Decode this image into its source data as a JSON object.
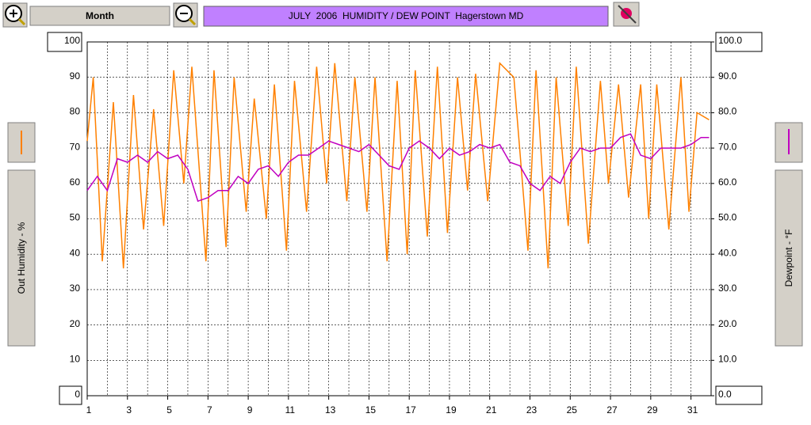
{
  "ui": {
    "period_button": "Month"
  },
  "chart_data": {
    "type": "line",
    "title": "JULY  2006  HUMIDITY / DEW POINT  Hagerstown MD",
    "ylabel": "Out Humidity - %",
    "y2label": "Dewpoint - °F",
    "xlim": [
      1,
      32
    ],
    "xticks": [
      1,
      3,
      5,
      7,
      9,
      11,
      13,
      15,
      17,
      19,
      21,
      23,
      25,
      27,
      29,
      31
    ],
    "xgrid": [
      2,
      3,
      4,
      5,
      6,
      7,
      8,
      9,
      10,
      11,
      12,
      13,
      14,
      15,
      16,
      17,
      18,
      19,
      20,
      21,
      22,
      23,
      24,
      25,
      26,
      27,
      28,
      29,
      30,
      31
    ],
    "ylim": [
      0,
      100
    ],
    "yticks": [
      0,
      10,
      20,
      30,
      40,
      50,
      60,
      70,
      80,
      90,
      100
    ],
    "y2lim": [
      0,
      100
    ],
    "y2ticks": [
      {
        "value": 0,
        "label": "0.0"
      },
      {
        "value": 10,
        "label": "10.0"
      },
      {
        "value": 20,
        "label": "20.0"
      },
      {
        "value": 30,
        "label": "30.0"
      },
      {
        "value": 40,
        "label": "40.0"
      },
      {
        "value": 50,
        "label": "50.0"
      },
      {
        "value": 60,
        "label": "60.0"
      },
      {
        "value": 70,
        "label": "70.0"
      },
      {
        "value": 80,
        "label": "80.0"
      },
      {
        "value": 90,
        "label": "90.0"
      },
      {
        "value": 100,
        "label": "100.0"
      }
    ],
    "grid": true,
    "series": [
      {
        "name": "Out Humidity",
        "color": "#ff8000",
        "x": [
          1.0,
          1.3,
          1.75,
          2.3,
          2.8,
          3.3,
          3.8,
          4.3,
          4.8,
          5.3,
          5.8,
          6.2,
          6.9,
          7.3,
          7.9,
          8.3,
          8.9,
          9.3,
          9.9,
          10.3,
          10.9,
          11.3,
          11.9,
          12.4,
          12.9,
          13.3,
          13.9,
          14.3,
          14.9,
          15.3,
          15.9,
          16.4,
          16.9,
          17.3,
          17.9,
          18.4,
          18.9,
          19.4,
          19.9,
          20.3,
          20.9,
          21.5,
          22.2,
          22.9,
          23.3,
          23.9,
          24.3,
          24.9,
          25.3,
          25.9,
          26.5,
          26.9,
          27.4,
          27.9,
          28.5,
          28.9,
          29.3,
          29.9,
          30.5,
          30.9,
          31.3,
          31.9
        ],
        "values": [
          72,
          90,
          38,
          83,
          36,
          85,
          47,
          81,
          48,
          92,
          60,
          93,
          38,
          92,
          42,
          90,
          52,
          84,
          50,
          88,
          41,
          89,
          52,
          93,
          60,
          94,
          55,
          90,
          52,
          90,
          38,
          89,
          40,
          92,
          45,
          93,
          46,
          90,
          58,
          91,
          55,
          94,
          90,
          41,
          92,
          36,
          90,
          48,
          93,
          43,
          89,
          60,
          88,
          56,
          88,
          50,
          88,
          47,
          90,
          52,
          80,
          78
        ]
      },
      {
        "name": "Dewpoint",
        "color": "#c000c0",
        "axis": "y2",
        "x": [
          1.0,
          1.5,
          2.0,
          2.5,
          3.0,
          3.5,
          4.0,
          4.5,
          5.0,
          5.5,
          6.0,
          6.5,
          7.0,
          7.5,
          8.0,
          8.5,
          9.0,
          9.5,
          10.0,
          10.5,
          11.0,
          11.5,
          12.0,
          12.5,
          13.0,
          13.5,
          14.0,
          14.5,
          15.0,
          15.5,
          16.0,
          16.5,
          17.0,
          17.5,
          18.0,
          18.5,
          19.0,
          19.5,
          20.0,
          20.5,
          21.0,
          21.5,
          22.0,
          22.5,
          23.0,
          23.5,
          24.0,
          24.5,
          25.0,
          25.5,
          26.0,
          26.5,
          27.0,
          27.5,
          28.0,
          28.5,
          29.0,
          29.5,
          30.0,
          30.5,
          31.0,
          31.5,
          31.9
        ],
        "values": [
          58,
          62,
          58,
          67,
          66,
          68,
          66,
          69,
          67,
          68,
          64,
          55,
          56,
          58,
          58,
          62,
          60,
          64,
          65,
          62,
          66,
          68,
          68,
          70,
          72,
          71,
          70,
          69,
          71,
          68,
          65,
          64,
          70,
          72,
          70,
          67,
          70,
          68,
          69,
          71,
          70,
          71,
          66,
          65,
          60,
          58,
          62,
          60,
          66,
          70,
          69,
          70,
          70,
          73,
          74,
          68,
          67,
          70,
          70,
          70,
          71,
          73,
          73
        ]
      }
    ]
  }
}
